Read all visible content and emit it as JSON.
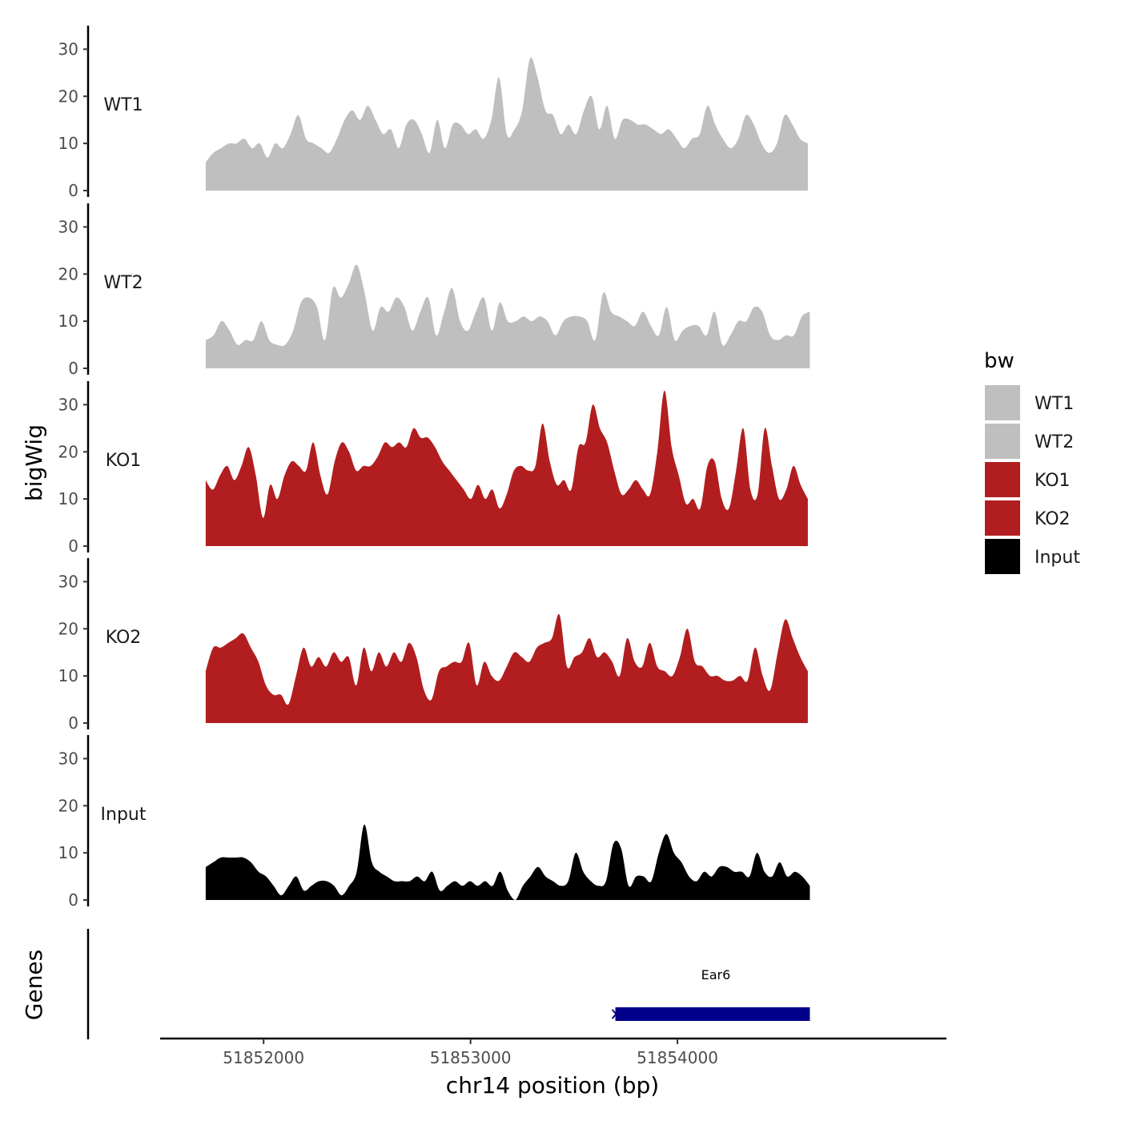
{
  "chart_data": {
    "type": "area",
    "ylabel": "bigWig",
    "xlabel": "chr14 position (bp)",
    "gene_track_label": "Genes",
    "xlim": [
      51851500,
      51855300
    ],
    "data_range": [
      51851720,
      51854640
    ],
    "ylim": [
      0,
      35
    ],
    "y_ticks": [
      0,
      10,
      20,
      30
    ],
    "x_ticks": [
      51852000,
      51853000,
      51854000
    ],
    "x_tick_labels": [
      "51852000",
      "51853000",
      "51854000"
    ],
    "legend": {
      "title": "bw",
      "items": [
        {
          "label": "WT1",
          "color": "#bfbfbf"
        },
        {
          "label": "WT2",
          "color": "#bfbfbf"
        },
        {
          "label": "KO1",
          "color": "#b21e1f"
        },
        {
          "label": "KO2",
          "color": "#b21e1f"
        },
        {
          "label": "Input",
          "color": "#000000"
        }
      ]
    },
    "series": [
      {
        "name": "WT1",
        "color": "#bfbfbf",
        "x_start": 51851720,
        "x_end": 51854630,
        "values": [
          6,
          8,
          9,
          10,
          10,
          11,
          9,
          10,
          7,
          10,
          9,
          12,
          16,
          11,
          10,
          9,
          8,
          11,
          15,
          17,
          15,
          18,
          15,
          12,
          13,
          9,
          14,
          15,
          12,
          8,
          15,
          9,
          14,
          14,
          12,
          13,
          11,
          15,
          24,
          12,
          13,
          17,
          28,
          24,
          17,
          16,
          12,
          14,
          12,
          17,
          20,
          13,
          18,
          11,
          15,
          15,
          14,
          14,
          13,
          12,
          13,
          11,
          9,
          11,
          12,
          18,
          14,
          11,
          9,
          11,
          16,
          14,
          10,
          8,
          10,
          16,
          14,
          11,
          10
        ]
      },
      {
        "name": "WT2",
        "color": "#bfbfbf",
        "x_start": 51851720,
        "x_end": 51854640,
        "values": [
          6,
          7,
          10,
          8,
          5,
          6,
          6,
          10,
          6,
          5,
          5,
          8,
          14,
          15,
          13,
          6,
          17,
          15,
          18,
          22,
          16,
          8,
          13,
          12,
          15,
          13,
          8,
          12,
          15,
          7,
          12,
          17,
          10,
          8,
          12,
          15,
          8,
          14,
          10,
          10,
          11,
          10,
          11,
          10,
          7,
          10,
          11,
          11,
          10,
          6,
          16,
          12,
          11,
          10,
          9,
          12,
          9,
          7,
          13,
          6,
          8,
          9,
          9,
          7,
          12,
          5,
          7,
          10,
          10,
          13,
          12,
          7,
          6,
          7,
          7,
          11,
          12
        ]
      },
      {
        "name": "KO1",
        "color": "#b21e1f",
        "x_start": 51851720,
        "x_end": 51854630,
        "values": [
          14,
          12,
          15,
          17,
          14,
          17,
          21,
          15,
          6,
          13,
          10,
          15,
          18,
          17,
          16,
          22,
          15,
          11,
          18,
          22,
          20,
          16,
          17,
          17,
          19,
          22,
          21,
          22,
          21,
          25,
          23,
          23,
          21,
          18,
          16,
          14,
          12,
          10,
          13,
          10,
          12,
          8,
          11,
          16,
          17,
          16,
          17,
          26,
          18,
          13,
          14,
          12,
          21,
          22,
          30,
          25,
          22,
          16,
          11,
          12,
          14,
          12,
          11,
          20,
          33,
          21,
          15,
          9,
          10,
          8,
          17,
          18,
          10,
          8,
          16,
          25,
          12,
          11,
          25,
          17,
          10,
          12,
          17,
          13,
          10
        ]
      },
      {
        "name": "KO2",
        "color": "#b21e1f",
        "x_start": 51851720,
        "x_end": 51854630,
        "values": [
          11,
          16,
          16,
          17,
          18,
          19,
          16,
          13,
          8,
          6,
          6,
          4,
          10,
          16,
          12,
          14,
          12,
          15,
          13,
          14,
          8,
          16,
          11,
          15,
          12,
          15,
          13,
          17,
          14,
          7,
          5,
          11,
          12,
          13,
          13,
          17,
          8,
          13,
          10,
          9,
          12,
          15,
          14,
          13,
          16,
          17,
          18,
          23,
          12,
          14,
          15,
          18,
          14,
          15,
          13,
          10,
          18,
          13,
          12,
          17,
          12,
          11,
          10,
          14,
          20,
          13,
          12,
          10,
          10,
          9,
          9,
          10,
          9,
          16,
          10,
          7,
          15,
          22,
          18,
          14,
          11
        ]
      },
      {
        "name": "Input",
        "color": "#000000",
        "x_start": 51851720,
        "x_end": 51854640,
        "values": [
          7,
          8,
          9,
          9,
          9,
          9,
          8,
          6,
          5,
          3,
          1,
          3,
          5,
          2,
          3,
          4,
          4,
          3,
          1,
          3,
          6,
          16,
          8,
          6,
          5,
          4,
          4,
          4,
          5,
          4,
          6,
          2,
          3,
          4,
          3,
          4,
          3,
          4,
          3,
          6,
          2,
          0,
          3,
          5,
          7,
          5,
          4,
          3,
          4,
          10,
          6,
          4,
          3,
          4,
          12,
          11,
          3,
          5,
          5,
          4,
          10,
          14,
          10,
          8,
          5,
          4,
          6,
          5,
          7,
          7,
          6,
          6,
          5,
          10,
          6,
          5,
          8,
          5,
          6,
          5,
          3
        ]
      }
    ],
    "gene_track": {
      "gene": "Ear6",
      "start": 51853700,
      "end": 51854640,
      "color": "#00008b"
    }
  }
}
